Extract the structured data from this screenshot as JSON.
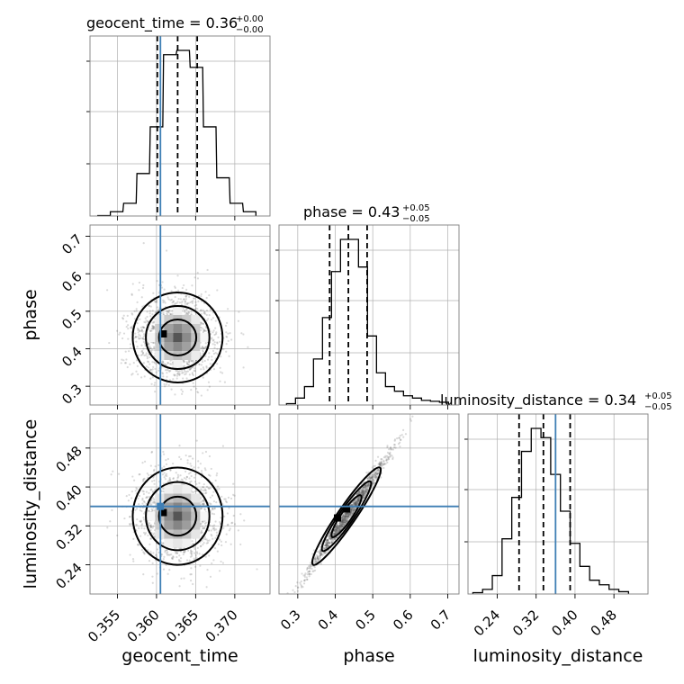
{
  "chart_data": {
    "type": "corner",
    "parameters": [
      "geocent_time",
      "phase",
      "luminosity_distance"
    ],
    "truths": {
      "geocent_time": 0.3605,
      "phase": null,
      "luminosity_distance": 0.36
    },
    "titles": [
      {
        "param": "geocent_time",
        "text": "geocent_time = 0.36",
        "sup": "+0.00",
        "sub": "−0.00"
      },
      {
        "param": "phase",
        "text": "phase = 0.43",
        "sup": "+0.05",
        "sub": "−0.05"
      },
      {
        "param": "luminosity_distance",
        "text": "luminosity_distance = 0.34",
        "sup": "+0.05",
        "sub": "−0.05"
      }
    ],
    "axes": {
      "geocent_time": {
        "range": [
          0.3515,
          0.3745
        ],
        "ticks": [
          "0.355",
          "0.360",
          "0.365",
          "0.370"
        ],
        "tick_values": [
          0.355,
          0.36,
          0.365,
          0.37
        ]
      },
      "phase": {
        "range": [
          0.25,
          0.73
        ],
        "ticks": [
          "0.3",
          "0.4",
          "0.5",
          "0.6",
          "0.7"
        ],
        "tick_values": [
          0.3,
          0.4,
          0.5,
          0.6,
          0.7
        ]
      },
      "luminosity_distance": {
        "range": [
          0.18,
          0.55
        ],
        "ticks": [
          "0.24",
          "0.32",
          "0.40",
          "0.48"
        ],
        "tick_values": [
          0.24,
          0.32,
          0.4,
          0.48
        ]
      }
    },
    "histograms": {
      "geocent_time": {
        "quantiles": [
          0.3601,
          0.3627,
          0.3652
        ],
        "bins": [
          [
            0.3525,
            0.1
          ],
          [
            0.3541,
            1
          ],
          [
            0.3558,
            3
          ],
          [
            0.3575,
            10
          ],
          [
            0.3592,
            21
          ],
          [
            0.3609,
            38
          ],
          [
            0.3626,
            39
          ],
          [
            0.3643,
            35
          ],
          [
            0.366,
            21
          ],
          [
            0.3677,
            9
          ],
          [
            0.3694,
            3
          ],
          [
            0.3711,
            1
          ]
        ]
      },
      "phase": {
        "quantiles": [
          0.385,
          0.435,
          0.485
        ],
        "bins": [
          [
            0.27,
            0.3
          ],
          [
            0.294,
            1.5
          ],
          [
            0.318,
            4
          ],
          [
            0.342,
            10
          ],
          [
            0.366,
            19
          ],
          [
            0.39,
            29
          ],
          [
            0.414,
            36
          ],
          [
            0.438,
            36
          ],
          [
            0.462,
            30
          ],
          [
            0.486,
            15
          ],
          [
            0.51,
            7
          ],
          [
            0.534,
            4
          ],
          [
            0.558,
            3
          ],
          [
            0.582,
            2
          ],
          [
            0.606,
            1.5
          ],
          [
            0.63,
            1
          ],
          [
            0.654,
            0.8
          ],
          [
            0.678,
            0.6
          ]
        ]
      },
      "luminosity_distance": {
        "quantiles": [
          0.285,
          0.335,
          0.39
        ],
        "bins": [
          [
            0.19,
            0.3
          ],
          [
            0.21,
            1
          ],
          [
            0.23,
            4
          ],
          [
            0.25,
            12
          ],
          [
            0.27,
            21
          ],
          [
            0.29,
            31
          ],
          [
            0.31,
            36
          ],
          [
            0.33,
            34
          ],
          [
            0.35,
            26
          ],
          [
            0.37,
            18
          ],
          [
            0.39,
            11
          ],
          [
            0.41,
            6
          ],
          [
            0.43,
            3
          ],
          [
            0.45,
            2
          ],
          [
            0.47,
            1
          ],
          [
            0.49,
            0.5
          ]
        ]
      }
    },
    "joint": [
      {
        "x": "geocent_time",
        "y": "phase",
        "center": [
          0.3627,
          0.43
        ],
        "spread": [
          0.0028,
          0.06
        ],
        "corr": 0
      },
      {
        "x": "geocent_time",
        "y": "luminosity_distance",
        "center": [
          0.3627,
          0.34
        ],
        "spread": [
          0.0028,
          0.05
        ],
        "corr": 0
      },
      {
        "x": "phase",
        "y": "luminosity_distance",
        "center": [
          0.43,
          0.34
        ],
        "spread": [
          0.05,
          0.05
        ],
        "corr": 0.96
      }
    ],
    "colors": {
      "truth": "#3f7fb5",
      "hist": "#000000",
      "points": "#555555",
      "grid": "#b0b0b0"
    }
  }
}
